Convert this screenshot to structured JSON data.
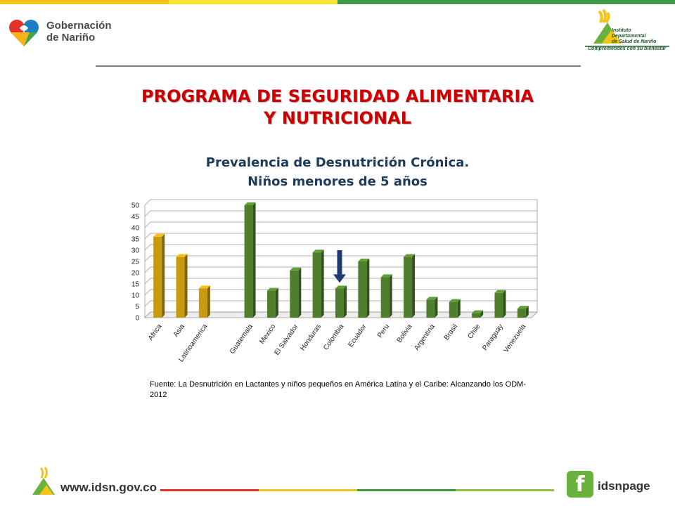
{
  "header": {
    "left_logo_text": [
      "Gobernación",
      "de Nariño"
    ],
    "right_logo_text": [
      "Instituto",
      "Departamental",
      "de Salud de Nariño"
    ],
    "right_logo_tagline": "Comprometidos con su bienestar"
  },
  "slide": {
    "title_line1": "PROGRAMA DE SEGURIDAD ALIMENTARIA",
    "title_line2": "Y NUTRICIONAL",
    "source": "Fuente: La Desnutrición en Lactantes y niños pequeños en América Latina y el Caribe: Alcanzando los ODM-2012"
  },
  "chart_data": {
    "type": "bar",
    "title_line1": "Prevalencia de Desnutrición Crónica.",
    "title_line2": "Niños menores de 5 años",
    "categories": [
      "Africa",
      "Asia",
      "Latinoamerica",
      "",
      "Guatemala",
      "Mexico",
      "El Salvador",
      "Honduras",
      "Colombia",
      "Ecuador",
      "Peru",
      "Bolivia",
      "Argentina",
      "Brasil",
      "Chile",
      "Paraguay",
      "Venezuela"
    ],
    "values": [
      36,
      27,
      13,
      null,
      50,
      12,
      21,
      29,
      13,
      25,
      18,
      27,
      8,
      7,
      2,
      11,
      4
    ],
    "bar_groups": [
      "region",
      "region",
      "region",
      "gap",
      "country",
      "country",
      "country",
      "country",
      "country",
      "country",
      "country",
      "country",
      "country",
      "country",
      "country",
      "country",
      "country"
    ],
    "yticks": [
      0,
      5,
      10,
      15,
      20,
      25,
      30,
      35,
      40,
      45,
      50
    ],
    "ylim": [
      0,
      50
    ],
    "grid": true,
    "highlight_category": "Colombia",
    "colors": {
      "region": "#c89a10",
      "country": "#4f7f2c",
      "arrow": "#1f3b6e"
    }
  },
  "footer": {
    "website": "www.idsn.gov.co",
    "facebook_label": "idsnpage",
    "facebook_icon": "facebook-icon"
  }
}
